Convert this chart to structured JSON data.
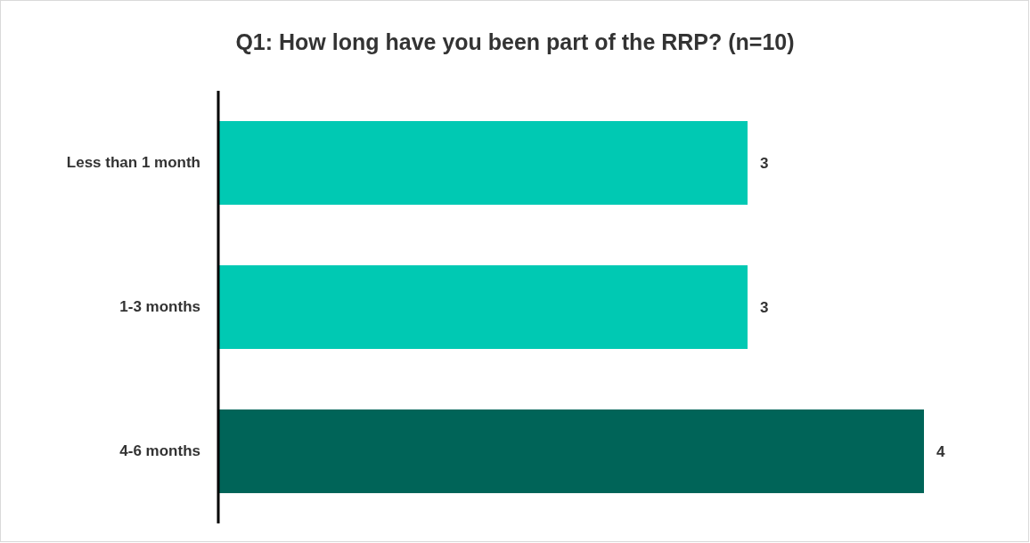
{
  "chart_data": {
    "type": "bar",
    "orientation": "horizontal",
    "title": "Q1: How long have you been part of the RRP? (n=10)",
    "categories": [
      "Less than 1 month",
      "1-3 months",
      "4-6 months"
    ],
    "values": [
      3,
      3,
      4
    ],
    "colors": [
      "#00c9b3",
      "#00c9b3",
      "#006458"
    ],
    "data_labels": true,
    "tick_labels": "y"
  }
}
